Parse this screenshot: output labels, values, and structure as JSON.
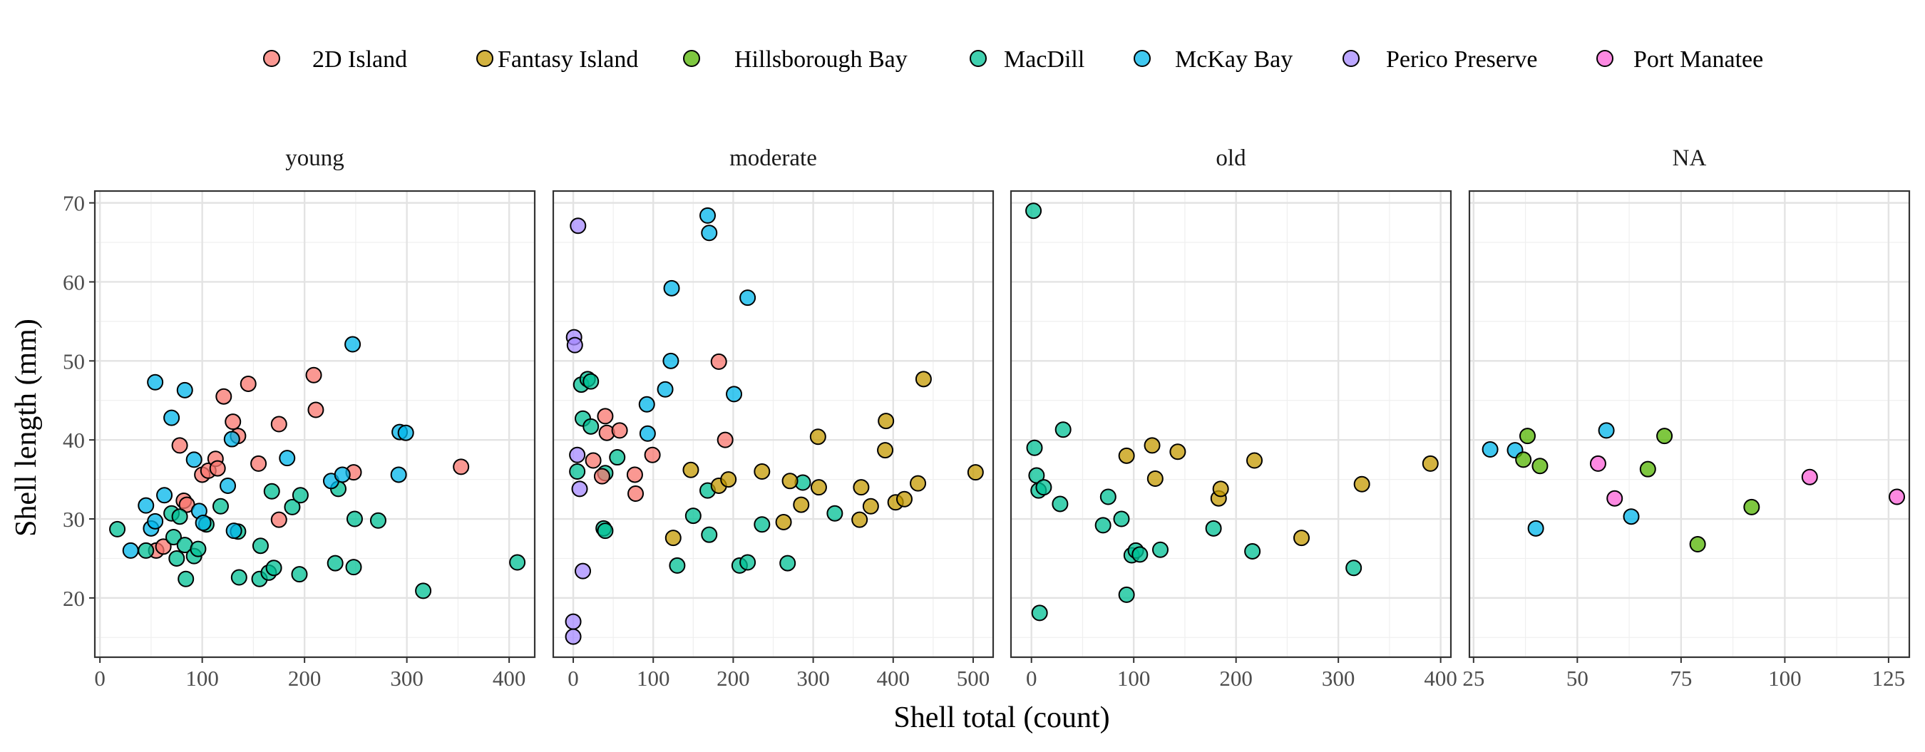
{
  "chart_data": {
    "type": "scatter",
    "xlabel": "Shell total (count)",
    "ylabel": "Shell length (mm)",
    "ylim": [
      12.5,
      71.5
    ],
    "y_ticks": [
      20,
      30,
      40,
      50,
      60,
      70
    ],
    "grid": true,
    "legend_position": "top",
    "series": [
      {
        "name": "2D Island",
        "color": "#F8766D"
      },
      {
        "name": "Fantasy Island",
        "color": "#C49A00"
      },
      {
        "name": "Hillsborough Bay",
        "color": "#53B400"
      },
      {
        "name": "MacDill",
        "color": "#00C094"
      },
      {
        "name": "McKay Bay",
        "color": "#00B6EB"
      },
      {
        "name": "Perico Preserve",
        "color": "#A58AFF"
      },
      {
        "name": "Port Manatee",
        "color": "#FB61D7"
      }
    ],
    "panels": [
      {
        "title": "young",
        "xlim": [
          -5,
          425
        ],
        "x_ticks": [
          0,
          100,
          200,
          300,
          400
        ],
        "points": [
          {
            "s": "2D Island",
            "x": 55,
            "y": 26
          },
          {
            "s": "2D Island",
            "x": 62,
            "y": 26.5
          },
          {
            "s": "2D Island",
            "x": 78,
            "y": 39.3
          },
          {
            "s": "2D Island",
            "x": 82,
            "y": 32.3
          },
          {
            "s": "2D Island",
            "x": 85,
            "y": 31.8
          },
          {
            "s": "2D Island",
            "x": 100,
            "y": 35.6
          },
          {
            "s": "2D Island",
            "x": 106,
            "y": 36.1
          },
          {
            "s": "2D Island",
            "x": 113,
            "y": 37.6
          },
          {
            "s": "2D Island",
            "x": 115,
            "y": 36.4
          },
          {
            "s": "2D Island",
            "x": 121,
            "y": 45.5
          },
          {
            "s": "2D Island",
            "x": 130,
            "y": 42.3
          },
          {
            "s": "2D Island",
            "x": 135,
            "y": 40.5
          },
          {
            "s": "2D Island",
            "x": 145,
            "y": 47.1
          },
          {
            "s": "2D Island",
            "x": 155,
            "y": 37
          },
          {
            "s": "2D Island",
            "x": 175,
            "y": 42
          },
          {
            "s": "2D Island",
            "x": 175,
            "y": 29.9
          },
          {
            "s": "2D Island",
            "x": 209,
            "y": 48.2
          },
          {
            "s": "2D Island",
            "x": 211,
            "y": 43.8
          },
          {
            "s": "2D Island",
            "x": 248,
            "y": 35.9
          },
          {
            "s": "2D Island",
            "x": 353,
            "y": 36.6
          },
          {
            "s": "MacDill",
            "x": 17,
            "y": 28.7
          },
          {
            "s": "MacDill",
            "x": 45,
            "y": 26
          },
          {
            "s": "MacDill",
            "x": 70,
            "y": 30.7
          },
          {
            "s": "MacDill",
            "x": 72,
            "y": 27.7
          },
          {
            "s": "MacDill",
            "x": 75,
            "y": 25
          },
          {
            "s": "MacDill",
            "x": 78,
            "y": 30.3
          },
          {
            "s": "MacDill",
            "x": 83,
            "y": 26.7
          },
          {
            "s": "MacDill",
            "x": 84,
            "y": 22.4
          },
          {
            "s": "MacDill",
            "x": 92,
            "y": 25.3
          },
          {
            "s": "MacDill",
            "x": 96,
            "y": 26.2
          },
          {
            "s": "MacDill",
            "x": 104,
            "y": 29.3
          },
          {
            "s": "MacDill",
            "x": 118,
            "y": 31.6
          },
          {
            "s": "MacDill",
            "x": 135,
            "y": 28.4
          },
          {
            "s": "MacDill",
            "x": 136,
            "y": 22.6
          },
          {
            "s": "MacDill",
            "x": 156,
            "y": 22.4
          },
          {
            "s": "MacDill",
            "x": 157,
            "y": 26.6
          },
          {
            "s": "MacDill",
            "x": 165,
            "y": 23.2
          },
          {
            "s": "MacDill",
            "x": 168,
            "y": 33.5
          },
          {
            "s": "MacDill",
            "x": 170,
            "y": 23.8
          },
          {
            "s": "MacDill",
            "x": 188,
            "y": 31.5
          },
          {
            "s": "MacDill",
            "x": 195,
            "y": 23
          },
          {
            "s": "MacDill",
            "x": 196,
            "y": 33
          },
          {
            "s": "MacDill",
            "x": 230,
            "y": 24.4
          },
          {
            "s": "MacDill",
            "x": 233,
            "y": 33.8
          },
          {
            "s": "MacDill",
            "x": 248,
            "y": 23.9
          },
          {
            "s": "MacDill",
            "x": 249,
            "y": 30
          },
          {
            "s": "MacDill",
            "x": 272,
            "y": 29.8
          },
          {
            "s": "MacDill",
            "x": 316,
            "y": 20.9
          },
          {
            "s": "MacDill",
            "x": 408,
            "y": 24.5
          },
          {
            "s": "McKay Bay",
            "x": 30,
            "y": 26
          },
          {
            "s": "McKay Bay",
            "x": 45,
            "y": 31.7
          },
          {
            "s": "McKay Bay",
            "x": 50,
            "y": 28.8
          },
          {
            "s": "McKay Bay",
            "x": 54,
            "y": 29.7
          },
          {
            "s": "McKay Bay",
            "x": 54,
            "y": 47.3
          },
          {
            "s": "McKay Bay",
            "x": 63,
            "y": 33
          },
          {
            "s": "McKay Bay",
            "x": 70,
            "y": 42.8
          },
          {
            "s": "McKay Bay",
            "x": 83,
            "y": 46.3
          },
          {
            "s": "McKay Bay",
            "x": 92,
            "y": 37.5
          },
          {
            "s": "McKay Bay",
            "x": 97,
            "y": 31
          },
          {
            "s": "McKay Bay",
            "x": 101,
            "y": 29.5
          },
          {
            "s": "McKay Bay",
            "x": 125,
            "y": 34.2
          },
          {
            "s": "McKay Bay",
            "x": 129,
            "y": 40.1
          },
          {
            "s": "McKay Bay",
            "x": 131,
            "y": 28.5
          },
          {
            "s": "McKay Bay",
            "x": 183,
            "y": 37.7
          },
          {
            "s": "McKay Bay",
            "x": 226,
            "y": 34.8
          },
          {
            "s": "McKay Bay",
            "x": 237,
            "y": 35.6
          },
          {
            "s": "McKay Bay",
            "x": 247,
            "y": 52.1
          },
          {
            "s": "McKay Bay",
            "x": 292,
            "y": 35.6
          },
          {
            "s": "McKay Bay",
            "x": 293,
            "y": 41
          },
          {
            "s": "McKay Bay",
            "x": 299,
            "y": 40.9
          }
        ]
      },
      {
        "title": "moderate",
        "xlim": [
          -25,
          525
        ],
        "x_ticks": [
          0,
          100,
          200,
          300,
          400,
          500
        ],
        "points": [
          {
            "s": "Perico Preserve",
            "x": 0,
            "y": 17
          },
          {
            "s": "Perico Preserve",
            "x": 0,
            "y": 15.1
          },
          {
            "s": "Perico Preserve",
            "x": 1,
            "y": 53
          },
          {
            "s": "Perico Preserve",
            "x": 2,
            "y": 52
          },
          {
            "s": "Perico Preserve",
            "x": 5,
            "y": 38.1
          },
          {
            "s": "Perico Preserve",
            "x": 6,
            "y": 67.1
          },
          {
            "s": "Perico Preserve",
            "x": 8,
            "y": 33.8
          },
          {
            "s": "Perico Preserve",
            "x": 12,
            "y": 23.4
          },
          {
            "s": "MacDill",
            "x": 5,
            "y": 36
          },
          {
            "s": "MacDill",
            "x": 10,
            "y": 47
          },
          {
            "s": "MacDill",
            "x": 12,
            "y": 42.7
          },
          {
            "s": "MacDill",
            "x": 18,
            "y": 47.7
          },
          {
            "s": "MacDill",
            "x": 22,
            "y": 41.7
          },
          {
            "s": "MacDill",
            "x": 22,
            "y": 47.4
          },
          {
            "s": "MacDill",
            "x": 38,
            "y": 28.8
          },
          {
            "s": "MacDill",
            "x": 40,
            "y": 35.8
          },
          {
            "s": "MacDill",
            "x": 40,
            "y": 28.5
          },
          {
            "s": "MacDill",
            "x": 55,
            "y": 37.8
          },
          {
            "s": "MacDill",
            "x": 130,
            "y": 24.1
          },
          {
            "s": "MacDill",
            "x": 150,
            "y": 30.4
          },
          {
            "s": "MacDill",
            "x": 168,
            "y": 33.6
          },
          {
            "s": "MacDill",
            "x": 170,
            "y": 28
          },
          {
            "s": "MacDill",
            "x": 208,
            "y": 24.1
          },
          {
            "s": "MacDill",
            "x": 218,
            "y": 24.5
          },
          {
            "s": "MacDill",
            "x": 236,
            "y": 29.3
          },
          {
            "s": "MacDill",
            "x": 268,
            "y": 24.4
          },
          {
            "s": "MacDill",
            "x": 287,
            "y": 34.6
          },
          {
            "s": "MacDill",
            "x": 327,
            "y": 30.7
          },
          {
            "s": "2D Island",
            "x": 25,
            "y": 37.4
          },
          {
            "s": "2D Island",
            "x": 36,
            "y": 35.4
          },
          {
            "s": "2D Island",
            "x": 40,
            "y": 43
          },
          {
            "s": "2D Island",
            "x": 42,
            "y": 40.9
          },
          {
            "s": "2D Island",
            "x": 58,
            "y": 41.2
          },
          {
            "s": "2D Island",
            "x": 77,
            "y": 35.6
          },
          {
            "s": "2D Island",
            "x": 78,
            "y": 33.2
          },
          {
            "s": "2D Island",
            "x": 99,
            "y": 38.1
          },
          {
            "s": "2D Island",
            "x": 182,
            "y": 49.9
          },
          {
            "s": "2D Island",
            "x": 190,
            "y": 40
          },
          {
            "s": "McKay Bay",
            "x": 92,
            "y": 44.5
          },
          {
            "s": "McKay Bay",
            "x": 93,
            "y": 40.8
          },
          {
            "s": "McKay Bay",
            "x": 115,
            "y": 46.4
          },
          {
            "s": "McKay Bay",
            "x": 122,
            "y": 50
          },
          {
            "s": "McKay Bay",
            "x": 123,
            "y": 59.2
          },
          {
            "s": "McKay Bay",
            "x": 168,
            "y": 68.4
          },
          {
            "s": "McKay Bay",
            "x": 170,
            "y": 66.2
          },
          {
            "s": "McKay Bay",
            "x": 201,
            "y": 45.8
          },
          {
            "s": "McKay Bay",
            "x": 218,
            "y": 58
          },
          {
            "s": "Fantasy Island",
            "x": 125,
            "y": 27.6
          },
          {
            "s": "Fantasy Island",
            "x": 147,
            "y": 36.2
          },
          {
            "s": "Fantasy Island",
            "x": 182,
            "y": 34.2
          },
          {
            "s": "Fantasy Island",
            "x": 194,
            "y": 35
          },
          {
            "s": "Fantasy Island",
            "x": 236,
            "y": 36
          },
          {
            "s": "Fantasy Island",
            "x": 263,
            "y": 29.6
          },
          {
            "s": "Fantasy Island",
            "x": 271,
            "y": 34.8
          },
          {
            "s": "Fantasy Island",
            "x": 285,
            "y": 31.8
          },
          {
            "s": "Fantasy Island",
            "x": 306,
            "y": 40.4
          },
          {
            "s": "Fantasy Island",
            "x": 307,
            "y": 34
          },
          {
            "s": "Fantasy Island",
            "x": 358,
            "y": 29.9
          },
          {
            "s": "Fantasy Island",
            "x": 360,
            "y": 34
          },
          {
            "s": "Fantasy Island",
            "x": 372,
            "y": 31.6
          },
          {
            "s": "Fantasy Island",
            "x": 390,
            "y": 38.7
          },
          {
            "s": "Fantasy Island",
            "x": 391,
            "y": 42.4
          },
          {
            "s": "Fantasy Island",
            "x": 403,
            "y": 32.1
          },
          {
            "s": "Fantasy Island",
            "x": 414,
            "y": 32.5
          },
          {
            "s": "Fantasy Island",
            "x": 431,
            "y": 34.5
          },
          {
            "s": "Fantasy Island",
            "x": 438,
            "y": 47.7
          },
          {
            "s": "Fantasy Island",
            "x": 503,
            "y": 35.9
          }
        ]
      },
      {
        "title": "old",
        "xlim": [
          -20,
          410
        ],
        "x_ticks": [
          0,
          100,
          200,
          300,
          400
        ],
        "points": [
          {
            "s": "MacDill",
            "x": 2,
            "y": 69
          },
          {
            "s": "MacDill",
            "x": 3,
            "y": 39
          },
          {
            "s": "MacDill",
            "x": 5,
            "y": 35.5
          },
          {
            "s": "MacDill",
            "x": 7,
            "y": 33.6
          },
          {
            "s": "MacDill",
            "x": 8,
            "y": 18.1
          },
          {
            "s": "MacDill",
            "x": 12,
            "y": 34
          },
          {
            "s": "MacDill",
            "x": 28,
            "y": 31.9
          },
          {
            "s": "MacDill",
            "x": 31,
            "y": 41.3
          },
          {
            "s": "MacDill",
            "x": 70,
            "y": 29.2
          },
          {
            "s": "MacDill",
            "x": 75,
            "y": 32.8
          },
          {
            "s": "MacDill",
            "x": 88,
            "y": 30
          },
          {
            "s": "MacDill",
            "x": 93,
            "y": 20.4
          },
          {
            "s": "MacDill",
            "x": 98,
            "y": 25.4
          },
          {
            "s": "MacDill",
            "x": 102,
            "y": 26
          },
          {
            "s": "MacDill",
            "x": 106,
            "y": 25.5
          },
          {
            "s": "MacDill",
            "x": 126,
            "y": 26.1
          },
          {
            "s": "MacDill",
            "x": 178,
            "y": 28.8
          },
          {
            "s": "MacDill",
            "x": 216,
            "y": 25.9
          },
          {
            "s": "MacDill",
            "x": 315,
            "y": 23.8
          },
          {
            "s": "Fantasy Island",
            "x": 93,
            "y": 38
          },
          {
            "s": "Fantasy Island",
            "x": 118,
            "y": 39.3
          },
          {
            "s": "Fantasy Island",
            "x": 121,
            "y": 35.1
          },
          {
            "s": "Fantasy Island",
            "x": 143,
            "y": 38.5
          },
          {
            "s": "Fantasy Island",
            "x": 183,
            "y": 32.6
          },
          {
            "s": "Fantasy Island",
            "x": 185,
            "y": 33.8
          },
          {
            "s": "Fantasy Island",
            "x": 218,
            "y": 37.4
          },
          {
            "s": "Fantasy Island",
            "x": 264,
            "y": 27.6
          },
          {
            "s": "Fantasy Island",
            "x": 323,
            "y": 34.4
          },
          {
            "s": "Fantasy Island",
            "x": 390,
            "y": 37
          }
        ]
      },
      {
        "title": "NA",
        "xlim": [
          24,
          130
        ],
        "x_ticks": [
          25,
          50,
          75,
          100,
          125
        ],
        "points": [
          {
            "s": "McKay Bay",
            "x": 29,
            "y": 38.8
          },
          {
            "s": "McKay Bay",
            "x": 35,
            "y": 38.7
          },
          {
            "s": "McKay Bay",
            "x": 40,
            "y": 28.8
          },
          {
            "s": "McKay Bay",
            "x": 57,
            "y": 41.2
          },
          {
            "s": "McKay Bay",
            "x": 63,
            "y": 30.3
          },
          {
            "s": "Hillsborough Bay",
            "x": 37,
            "y": 37.5
          },
          {
            "s": "Hillsborough Bay",
            "x": 38,
            "y": 40.5
          },
          {
            "s": "Hillsborough Bay",
            "x": 41,
            "y": 36.7
          },
          {
            "s": "Hillsborough Bay",
            "x": 67,
            "y": 36.3
          },
          {
            "s": "Hillsborough Bay",
            "x": 71,
            "y": 40.5
          },
          {
            "s": "Hillsborough Bay",
            "x": 79,
            "y": 26.8
          },
          {
            "s": "Hillsborough Bay",
            "x": 92,
            "y": 31.5
          },
          {
            "s": "Port Manatee",
            "x": 55,
            "y": 37
          },
          {
            "s": "Port Manatee",
            "x": 59,
            "y": 32.6
          },
          {
            "s": "Port Manatee",
            "x": 106,
            "y": 35.3
          },
          {
            "s": "Port Manatee",
            "x": 127,
            "y": 32.8
          }
        ]
      }
    ]
  }
}
